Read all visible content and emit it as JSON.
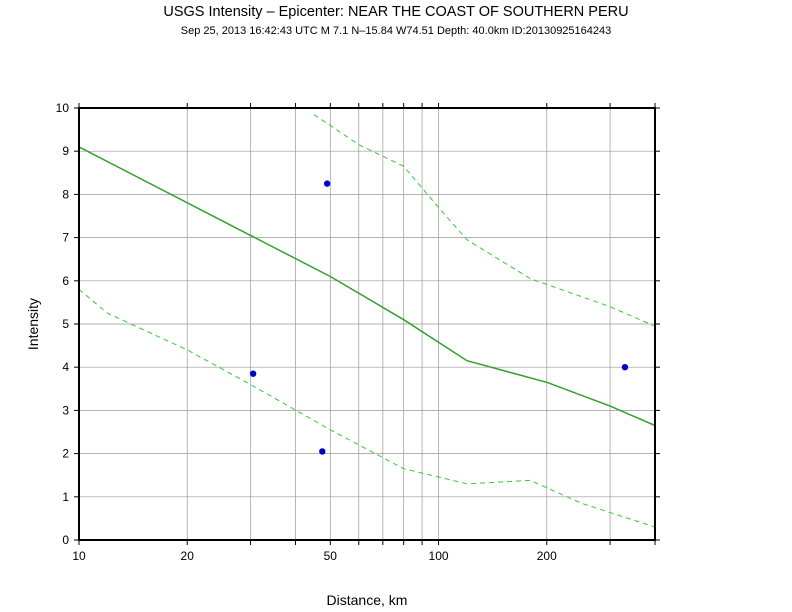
{
  "chart_data": {
    "type": "scatter",
    "title": "USGS Intensity –  Epicenter: NEAR THE COAST OF SOUTHERN PERU",
    "subtitle": "Sep 25, 2013 16:42:43 UTC   M 7.1    N–15.84 W74.51    Depth: 40.0km   ID:20130925164243",
    "xlabel": "Distance, km",
    "ylabel": "Intensity",
    "xscale": "log",
    "xlim": [
      10,
      400
    ],
    "ylim": [
      0,
      10
    ],
    "grid": true,
    "x_ticks": [
      10,
      20,
      50,
      100,
      200
    ],
    "y_ticks": [
      0,
      1,
      2,
      3,
      4,
      5,
      6,
      7,
      8,
      9,
      10
    ],
    "colors": {
      "points": "#0000cc",
      "median": "#33a02c",
      "bounds": "#33cc33",
      "grid": "#999999"
    },
    "series": [
      {
        "kind": "points",
        "x": [
          30.5,
          47.5,
          49,
          330
        ],
        "y": [
          3.85,
          2.05,
          8.25,
          4.0
        ]
      },
      {
        "kind": "line",
        "x": [
          10,
          30,
          50,
          80,
          120,
          200,
          300,
          400
        ],
        "y": [
          9.1,
          7.05,
          6.1,
          5.1,
          4.15,
          3.65,
          3.1,
          2.65
        ]
      },
      {
        "kind": "dashed-line",
        "x": [
          45,
          60,
          80,
          100,
          120,
          180,
          300,
          400
        ],
        "y": [
          9.85,
          9.15,
          8.65,
          7.7,
          6.95,
          6.05,
          5.4,
          4.95
        ]
      },
      {
        "kind": "dashed-line",
        "x": [
          10,
          12,
          20,
          30,
          50,
          80,
          120,
          180,
          250,
          400
        ],
        "y": [
          5.8,
          5.25,
          4.4,
          3.6,
          2.55,
          1.65,
          1.3,
          1.38,
          0.85,
          0.3
        ]
      }
    ]
  }
}
